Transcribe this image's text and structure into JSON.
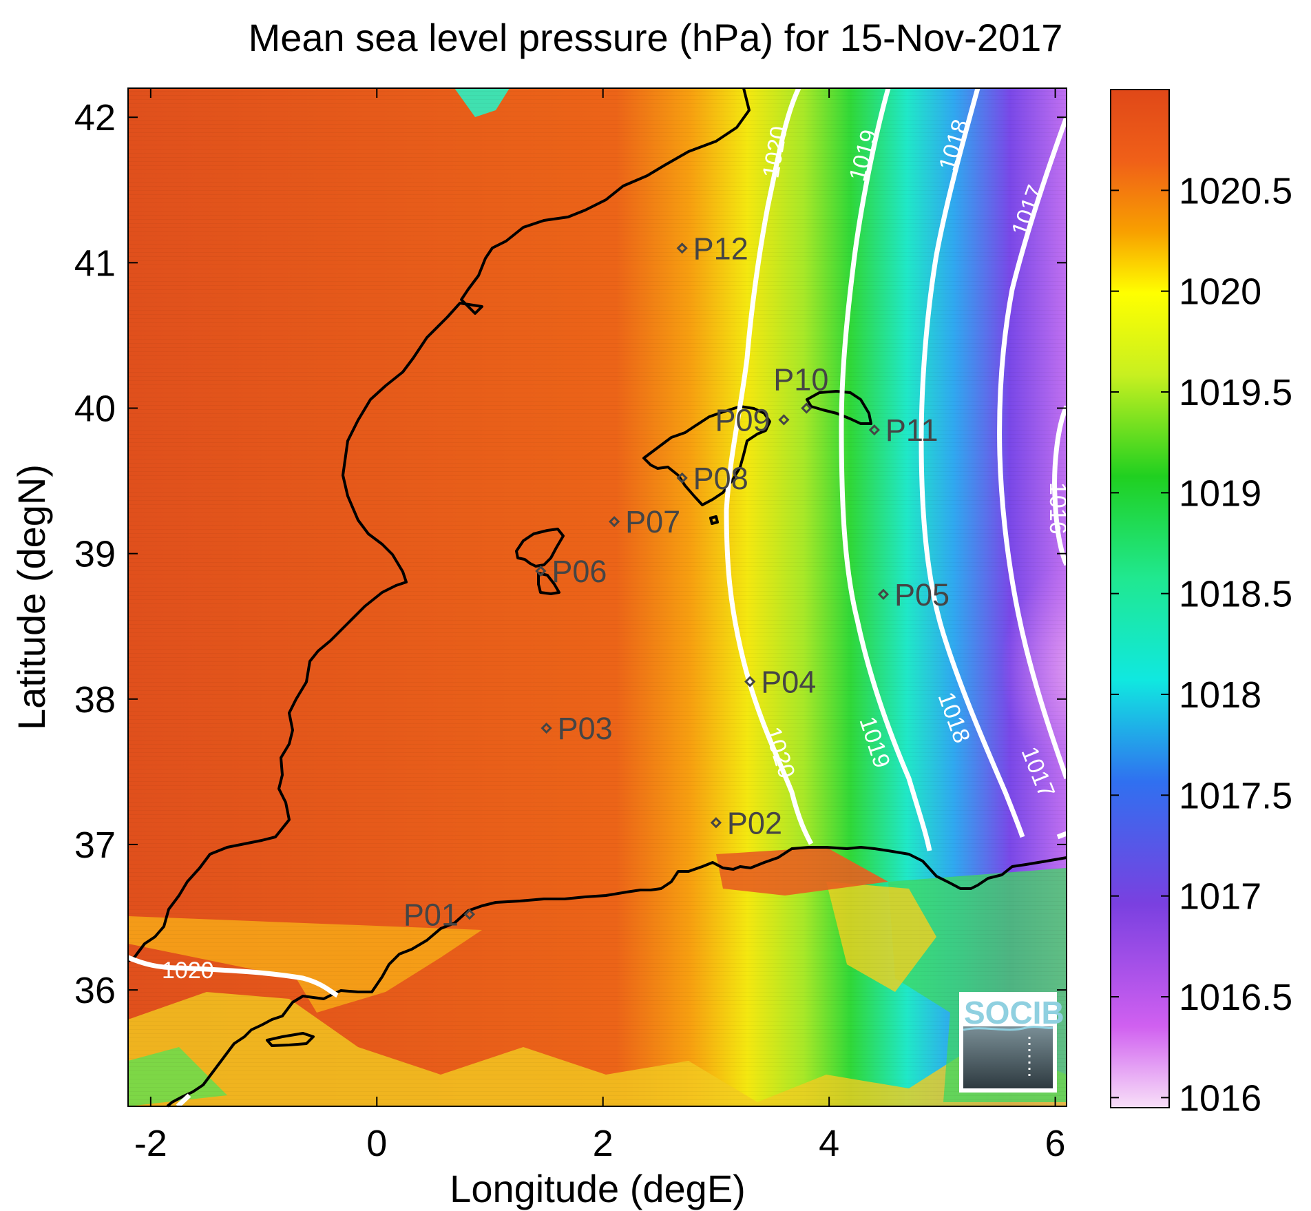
{
  "title": "Mean sea level pressure (hPa) for 15-Nov-2017",
  "map": {
    "xlabel": "Longitude (degE)",
    "ylabel": "Latitude (degN)",
    "xlim": [
      -2.2,
      6.1
    ],
    "ylim": [
      35.2,
      42.2
    ],
    "xticks": [
      "-2",
      "0",
      "2",
      "4",
      "6"
    ],
    "yticks": [
      "36",
      "37",
      "38",
      "39",
      "40",
      "41",
      "42"
    ]
  },
  "colorbar": {
    "range": [
      1015.95,
      1021.0
    ],
    "ticks": [
      "1016",
      "1016.5",
      "1017",
      "1017.5",
      "1018",
      "1018.5",
      "1019",
      "1019.5",
      "1020",
      "1020.5"
    ]
  },
  "contours": [
    {
      "level": 1020,
      "label": "1020"
    },
    {
      "level": 1019,
      "label": "1019"
    },
    {
      "level": 1018,
      "label": "1018"
    },
    {
      "level": 1017,
      "label": "1017"
    },
    {
      "level": 1016,
      "label": "1016"
    }
  ],
  "stations": [
    {
      "id": "P01",
      "lon": 0.82,
      "lat": 36.52
    },
    {
      "id": "P02",
      "lon": 3.0,
      "lat": 37.15
    },
    {
      "id": "P03",
      "lon": 1.5,
      "lat": 37.8
    },
    {
      "id": "P04",
      "lon": 3.3,
      "lat": 38.12
    },
    {
      "id": "P05",
      "lon": 4.48,
      "lat": 38.72
    },
    {
      "id": "P06",
      "lon": 1.45,
      "lat": 38.88
    },
    {
      "id": "P07",
      "lon": 2.1,
      "lat": 39.22
    },
    {
      "id": "P08",
      "lon": 2.7,
      "lat": 39.52
    },
    {
      "id": "P09",
      "lon": 3.6,
      "lat": 39.92
    },
    {
      "id": "P10",
      "lon": 3.8,
      "lat": 40.0
    },
    {
      "id": "P11",
      "lon": 4.4,
      "lat": 39.85
    },
    {
      "id": "P12",
      "lon": 2.7,
      "lat": 41.1
    }
  ],
  "logo": {
    "text": "SOCIB"
  },
  "colors": {
    "land_high": "#e0501c",
    "sea_high": "#ec6418",
    "coastline": "#000000",
    "contour": "#ffffff",
    "station": "#454545"
  }
}
